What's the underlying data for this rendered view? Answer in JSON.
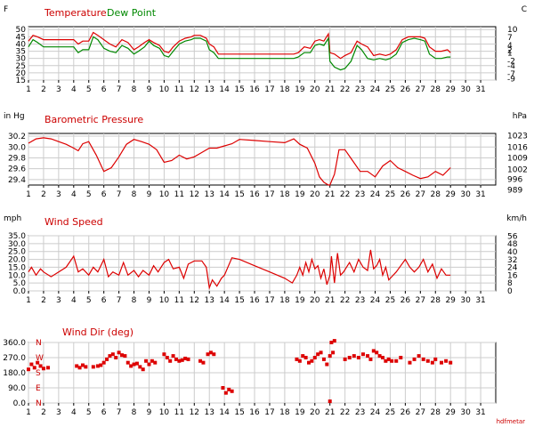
{
  "colors": {
    "red": "#dd0000",
    "green": "#008800",
    "grid": "#cccccc",
    "frame": "#000000"
  },
  "credit": "hdfmetar",
  "chart_data": [
    {
      "type": "line",
      "title": "Temperature",
      "title2": "Dew Point",
      "unit_left": "F",
      "unit_right": "C",
      "xlim": [
        1,
        32
      ],
      "x_ticks": [
        "1",
        "2",
        "3",
        "4",
        "5",
        "6",
        "7",
        "8",
        "9",
        "10",
        "11",
        "12",
        "13",
        "14",
        "15",
        "16",
        "17",
        "18",
        "19",
        "20",
        "21",
        "22",
        "23",
        "24",
        "25",
        "26",
        "27",
        "28",
        "29",
        "30",
        "31"
      ],
      "ylim": [
        15,
        52
      ],
      "y_ticks": [
        15,
        20,
        25,
        30,
        35,
        40,
        45,
        50
      ],
      "y2_ticks": [
        {
          "label": "-9",
          "y": 15.8
        },
        {
          "label": "-7",
          "y": 19.4
        },
        {
          "label": "-4",
          "y": 24.8
        },
        {
          "label": "-2",
          "y": 28.4
        },
        {
          "label": "1",
          "y": 33.8
        },
        {
          "label": "2",
          "y": 35.6
        },
        {
          "label": "4",
          "y": 39.2
        },
        {
          "label": "7",
          "y": 44.6
        },
        {
          "label": "10",
          "y": 50
        }
      ],
      "series": [
        {
          "name": "Temperature",
          "color": "#dd0000",
          "x": [
            1,
            1.3,
            1.6,
            2,
            2.5,
            3,
            3.5,
            4,
            4.3,
            4.6,
            5,
            5.3,
            5.6,
            6,
            6.4,
            6.8,
            7.2,
            7.6,
            8,
            8.3,
            8.7,
            9,
            9.3,
            9.7,
            10,
            10.3,
            10.6,
            11,
            11.4,
            11.8,
            12,
            12.4,
            12.8,
            13,
            13.3,
            13.6,
            14,
            14.5,
            15,
            16,
            17,
            18,
            18.6,
            18.9,
            19.3,
            19.7,
            20,
            20.3,
            20.6,
            20.9,
            21,
            21.3,
            21.7,
            22,
            22.4,
            22.8,
            23.1,
            23.5,
            23.9,
            24.3,
            24.7,
            25,
            25.4,
            25.8,
            26.2,
            26.6,
            27,
            27.3,
            27.6,
            28,
            28.4,
            28.8,
            29
          ],
          "y": [
            42,
            46,
            45,
            43,
            43,
            43,
            43,
            43,
            40,
            42,
            42,
            48,
            46,
            43,
            40,
            38,
            43,
            41,
            36,
            38,
            41,
            43,
            41,
            39,
            35,
            34,
            38,
            42,
            44,
            45,
            46,
            46,
            44,
            40,
            38,
            33,
            33,
            33,
            33,
            33,
            33,
            33,
            33,
            34,
            38,
            37,
            42,
            43,
            42,
            47,
            34,
            33,
            30,
            32,
            34,
            42,
            40,
            38,
            32,
            33,
            32,
            33,
            36,
            43,
            45,
            45,
            45,
            44,
            38,
            35,
            35,
            36,
            34
          ]
        },
        {
          "name": "Dew Point",
          "color": "#008800",
          "x": [
            1,
            1.3,
            1.6,
            2,
            2.5,
            3,
            3.5,
            4,
            4.3,
            4.6,
            5,
            5.3,
            5.6,
            6,
            6.4,
            6.8,
            7.2,
            7.6,
            8,
            8.3,
            8.7,
            9,
            9.3,
            9.7,
            10,
            10.3,
            10.6,
            11,
            11.4,
            11.8,
            12,
            12.4,
            12.8,
            13,
            13.3,
            13.6,
            14,
            14.5,
            15,
            16,
            17,
            18,
            18.6,
            18.9,
            19.3,
            19.7,
            20,
            20.3,
            20.6,
            20.9,
            21,
            21.3,
            21.7,
            22,
            22.4,
            22.8,
            23.1,
            23.5,
            23.9,
            24.3,
            24.7,
            25,
            25.4,
            25.8,
            26.2,
            26.6,
            27,
            27.3,
            27.6,
            28,
            28.4,
            28.8,
            29
          ],
          "y": [
            38,
            43,
            41,
            38,
            38,
            38,
            38,
            38,
            34,
            36,
            36,
            45,
            43,
            37,
            35,
            34,
            39,
            37,
            33,
            35,
            38,
            42,
            39,
            37,
            32,
            31,
            35,
            40,
            42,
            43,
            44,
            44,
            42,
            36,
            34,
            30,
            30,
            30,
            30,
            30,
            30,
            30,
            30,
            31,
            34,
            34,
            39,
            40,
            39,
            44,
            28,
            24,
            22,
            23,
            28,
            39,
            36,
            30,
            29,
            30,
            29,
            30,
            33,
            41,
            43,
            44,
            43,
            42,
            33,
            30,
            30,
            31,
            31
          ]
        }
      ]
    },
    {
      "type": "line",
      "title": "Barometric Pressure",
      "unit_left": "in Hg",
      "unit_right": "hPa",
      "xlim": [
        1,
        32
      ],
      "x_ticks": [
        "1",
        "2",
        "3",
        "4",
        "5",
        "6",
        "7",
        "8",
        "9",
        "10",
        "11",
        "12",
        "13",
        "14",
        "15",
        "16",
        "17",
        "18",
        "19",
        "20",
        "21",
        "22",
        "23",
        "24",
        "25",
        "26",
        "27",
        "28",
        "29",
        "30",
        "31"
      ],
      "ylim": [
        29.3,
        30.25
      ],
      "y_ticks": [
        29.4,
        29.6,
        29.8,
        30.0,
        30.2
      ],
      "y_tick_labels": [
        "29.4",
        "29.6",
        "29.8",
        "30.0",
        "30.2"
      ],
      "y2_ticks": [
        {
          "label": "989",
          "y": 29.21
        },
        {
          "label": "996",
          "y": 29.41
        },
        {
          "label": "1002",
          "y": 29.59
        },
        {
          "label": "1009",
          "y": 29.8
        },
        {
          "label": "1016",
          "y": 30.0
        },
        {
          "label": "1023",
          "y": 30.21
        }
      ],
      "series": [
        {
          "name": "Barometric Pressure",
          "color": "#dd0000",
          "x": [
            1,
            1.5,
            2,
            2.5,
            3,
            3.5,
            4,
            4.3,
            4.6,
            5,
            5.5,
            6,
            6.5,
            7,
            7.5,
            8,
            8.5,
            9,
            9.5,
            10,
            10.5,
            11,
            11.5,
            12,
            12.5,
            13,
            13.5,
            14,
            14.5,
            15,
            16,
            17,
            18,
            18.6,
            19,
            19.5,
            20,
            20.3,
            20.6,
            20.9,
            21,
            21.3,
            21.6,
            22,
            22.5,
            23,
            23.5,
            24,
            24.5,
            25,
            25.5,
            26,
            26.5,
            27,
            27.5,
            28,
            28.5,
            29
          ],
          "y": [
            30.07,
            30.15,
            30.17,
            30.15,
            30.1,
            30.05,
            29.98,
            29.93,
            30.06,
            30.1,
            29.85,
            29.55,
            29.62,
            29.82,
            30.05,
            30.14,
            30.1,
            30.05,
            29.95,
            29.72,
            29.75,
            29.85,
            29.78,
            29.82,
            29.9,
            29.98,
            29.98,
            30.02,
            30.06,
            30.14,
            30.12,
            30.1,
            30.08,
            30.15,
            30.05,
            29.98,
            29.7,
            29.45,
            29.35,
            29.3,
            29.3,
            29.5,
            29.95,
            29.95,
            29.75,
            29.55,
            29.55,
            29.45,
            29.65,
            29.75,
            29.62,
            29.55,
            29.48,
            29.42,
            29.45,
            29.55,
            29.48,
            29.62
          ]
        }
      ]
    },
    {
      "type": "line",
      "title": "Wind Speed",
      "unit_left": "mph",
      "unit_right": "km/h",
      "xlim": [
        1,
        32
      ],
      "x_ticks": [
        "1",
        "2",
        "3",
        "4",
        "5",
        "6",
        "7",
        "8",
        "9",
        "10",
        "11",
        "12",
        "13",
        "14",
        "15",
        "16",
        "17",
        "18",
        "19",
        "20",
        "21",
        "22",
        "23",
        "24",
        "25",
        "26",
        "27",
        "28",
        "29",
        "30",
        "31"
      ],
      "ylim": [
        0,
        35
      ],
      "y_ticks": [
        0,
        5,
        10,
        15,
        20,
        25,
        30,
        35
      ],
      "y_tick_labels": [
        "0.0",
        "5.0",
        "10.0",
        "15.0",
        "20.0",
        "25.0",
        "30.0",
        "35.0"
      ],
      "y2_ticks": [
        {
          "label": "0",
          "y": 0
        },
        {
          "label": "8",
          "y": 4.97
        },
        {
          "label": "16",
          "y": 9.94
        },
        {
          "label": "24",
          "y": 14.91
        },
        {
          "label": "32",
          "y": 19.88
        },
        {
          "label": "40",
          "y": 24.85
        },
        {
          "label": "48",
          "y": 29.83
        },
        {
          "label": "56",
          "y": 34.8
        }
      ],
      "series": [
        {
          "name": "Wind Speed",
          "color": "#dd0000",
          "x": [
            1,
            1.2,
            1.5,
            1.8,
            2,
            2.5,
            3,
            3.5,
            4,
            4.3,
            4.6,
            5,
            5.3,
            5.6,
            6,
            6.3,
            6.6,
            7,
            7.3,
            7.6,
            8,
            8.3,
            8.6,
            9,
            9.3,
            9.6,
            10,
            10.3,
            10.6,
            11,
            11.3,
            11.6,
            12,
            12.5,
            12.8,
            13,
            13.2,
            13.5,
            13.8,
            14,
            14.5,
            15,
            16,
            17,
            18,
            18.5,
            18.8,
            19,
            19.2,
            19.4,
            19.6,
            19.8,
            20,
            20.2,
            20.4,
            20.6,
            20.8,
            21,
            21.1,
            21.3,
            21.5,
            21.7,
            21.9,
            22.1,
            22.3,
            22.6,
            22.9,
            23.2,
            23.5,
            23.7,
            23.9,
            24.1,
            24.3,
            24.5,
            24.7,
            24.9,
            25.1,
            25.4,
            25.7,
            26,
            26.3,
            26.6,
            26.9,
            27.2,
            27.5,
            27.8,
            28.1,
            28.4,
            28.7,
            29
          ],
          "y": [
            12,
            15,
            10,
            14,
            12,
            9,
            12,
            15,
            22,
            12,
            14,
            10,
            15,
            12,
            20,
            9,
            12,
            10,
            18,
            10,
            13,
            9,
            13,
            10,
            16,
            12,
            18,
            20,
            14,
            15,
            8,
            17,
            19,
            19,
            15,
            2,
            7,
            3,
            8,
            10,
            21,
            20,
            16,
            12,
            8,
            5,
            10,
            15,
            10,
            18,
            12,
            20,
            14,
            16,
            8,
            14,
            4,
            10,
            22,
            5,
            24,
            10,
            12,
            15,
            18,
            12,
            20,
            15,
            13,
            26,
            14,
            16,
            20,
            10,
            15,
            7,
            9,
            12,
            16,
            20,
            15,
            12,
            15,
            20,
            12,
            17,
            8,
            14,
            10,
            10
          ]
        }
      ]
    },
    {
      "type": "scatter",
      "title": "Wind Dir (deg)",
      "xlim": [
        1,
        32
      ],
      "x_ticks": [
        "1",
        "2",
        "3",
        "4",
        "5",
        "6",
        "7",
        "8",
        "9",
        "10",
        "11",
        "12",
        "13",
        "14",
        "15",
        "16",
        "17",
        "18",
        "19",
        "20",
        "21",
        "22",
        "23",
        "24",
        "25",
        "26",
        "27",
        "28",
        "29",
        "30",
        "31"
      ],
      "ylim": [
        0,
        360
      ],
      "y_ticks": [
        0,
        90,
        180,
        270,
        360
      ],
      "y_tick_labels": [
        "0.0",
        "90.0",
        "180.0",
        "270.0",
        "360.0"
      ],
      "compass": [
        {
          "label": "N",
          "y": 360
        },
        {
          "label": "W",
          "y": 270
        },
        {
          "label": "S",
          "y": 180
        },
        {
          "label": "E",
          "y": 90
        },
        {
          "label": "N",
          "y": 0
        }
      ],
      "series": [
        {
          "name": "Wind Dir",
          "color": "#dd0000",
          "x": [
            1,
            1.2,
            1.4,
            1.6,
            1.8,
            2,
            2.3,
            4.2,
            4.4,
            4.6,
            4.8,
            5.3,
            5.6,
            5.8,
            6,
            6.2,
            6.4,
            6.6,
            6.8,
            7,
            7.2,
            7.4,
            7.6,
            7.8,
            8,
            8.2,
            8.4,
            8.6,
            8.8,
            9,
            9.2,
            9.4,
            10,
            10.2,
            10.4,
            10.6,
            10.8,
            11,
            11.2,
            11.4,
            11.6,
            12.4,
            12.6,
            12.9,
            13.1,
            13.3,
            13.9,
            14.1,
            14.3,
            14.5,
            21,
            21.1,
            21.3,
            18.8,
            19,
            19.2,
            19.4,
            19.6,
            19.8,
            20,
            20.2,
            20.4,
            20.6,
            20.8,
            21,
            21.2,
            22,
            22.3,
            22.6,
            22.9,
            23.2,
            23.5,
            23.7,
            23.9,
            24.1,
            24.3,
            24.5,
            24.7,
            24.9,
            25.1,
            25.4,
            25.7,
            26.3,
            26.6,
            26.9,
            27.2,
            27.5,
            27.8,
            28,
            28.4,
            28.7,
            29
          ],
          "y": [
            200,
            230,
            210,
            240,
            220,
            205,
            210,
            220,
            210,
            225,
            215,
            215,
            220,
            225,
            240,
            260,
            280,
            290,
            270,
            300,
            285,
            280,
            240,
            220,
            230,
            235,
            215,
            200,
            250,
            230,
            250,
            240,
            290,
            270,
            250,
            280,
            260,
            250,
            255,
            265,
            260,
            250,
            240,
            290,
            300,
            290,
            90,
            60,
            80,
            70,
            10,
            360,
            370,
            260,
            250,
            280,
            270,
            240,
            250,
            270,
            290,
            300,
            260,
            230,
            280,
            300,
            260,
            270,
            280,
            270,
            290,
            280,
            260,
            310,
            300,
            280,
            270,
            250,
            260,
            250,
            250,
            270,
            240,
            260,
            280,
            260,
            250,
            240,
            260,
            240,
            250,
            240
          ]
        }
      ]
    }
  ]
}
